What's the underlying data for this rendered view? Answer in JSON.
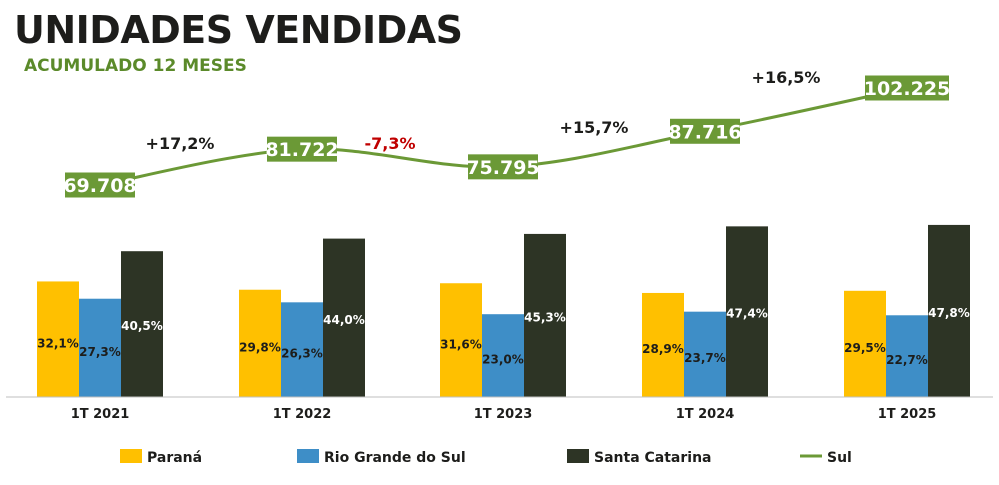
{
  "title": "UNIDADES VENDIDAS",
  "subtitle": "ACUMULADO 12 MESES",
  "chart_data": {
    "type": "bar",
    "categories": [
      "1T 2021",
      "1T 2022",
      "1T 2023",
      "1T 2024",
      "1T 2025"
    ],
    "series": [
      {
        "name": "Paraná",
        "values": [
          32.1,
          29.8,
          31.6,
          28.9,
          29.5
        ],
        "labels": [
          "32,1%",
          "29,8%",
          "31,6%",
          "28,9%",
          "29,5%"
        ],
        "color": "#ffc000",
        "label_color": "#1d1d1b"
      },
      {
        "name": "Rio Grande do Sul",
        "values": [
          27.3,
          26.3,
          23.0,
          23.7,
          22.7
        ],
        "labels": [
          "27,3%",
          "26,3%",
          "23,0%",
          "23,7%",
          "22,7%"
        ],
        "color": "#3e8ec7",
        "label_color": "#1d1d1b"
      },
      {
        "name": "Santa Catarina",
        "values": [
          40.5,
          44.0,
          45.3,
          47.4,
          47.8
        ],
        "labels": [
          "40,5%",
          "44,0%",
          "45,3%",
          "47,4%",
          "47,8%"
        ],
        "color": "#2d3425",
        "label_color": "#ffffff"
      }
    ],
    "line_series": {
      "name": "Sul",
      "values": [
        69708,
        81722,
        75795,
        87716,
        102225
      ],
      "labels": [
        "69.708",
        "81.722",
        "75.795",
        "87.716",
        "102.225"
      ],
      "color": "#6b9936"
    },
    "growth_labels": [
      {
        "text": "+17,2%",
        "color": "#1d1d1b"
      },
      {
        "text": "-7,3%",
        "color": "#c00000"
      },
      {
        "text": "+15,7%",
        "color": "#1d1d1b"
      },
      {
        "text": "+16,5%",
        "color": "#1d1d1b"
      }
    ],
    "legend_position": "bottom",
    "grid": false
  }
}
